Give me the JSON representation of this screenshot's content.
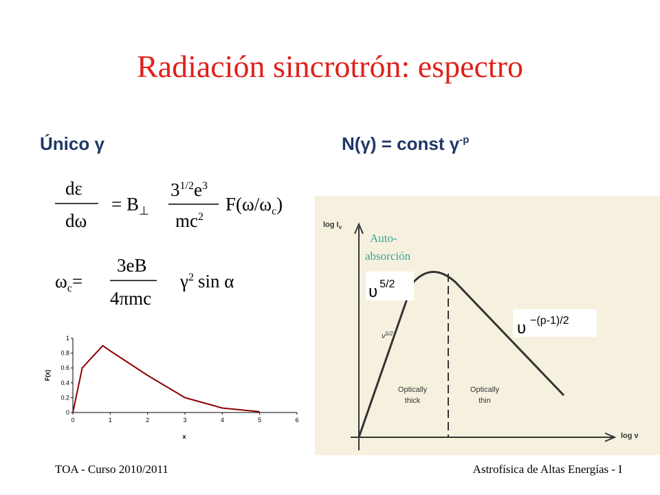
{
  "header": {
    "title": "Radiación sincrotrón: espectro"
  },
  "left": {
    "heading": "Único γ",
    "formula1": {
      "numerator": "dε",
      "denominator": "dω",
      "factor": "= B",
      "factor_sub": "⊥",
      "coef_base": "3",
      "coef_sup": "1/2",
      "coef_e": "e",
      "coef_e_sup": "3",
      "coef_den": "mc",
      "coef_den_sup": "2",
      "function": "F(ω/ω",
      "function_sub": "c",
      "function_end": ")"
    },
    "formula2": {
      "lhs": "ω",
      "lhs_sub": "c",
      "equals": "=",
      "numerator": "3eB",
      "denominator": "4πmc",
      "gamma": "γ",
      "gamma_sup": "2",
      "rest": "sin α"
    }
  },
  "chart_data": {
    "type": "line",
    "x_label": "x",
    "y_label": "F(x)",
    "x": [
      0,
      0.25,
      0.8,
      1,
      2,
      3,
      4,
      5
    ],
    "series": [
      {
        "color": "#8b0000",
        "values": [
          0,
          0.6,
          0.9,
          0.83,
          0.5,
          0.2,
          0.06,
          0.01
        ]
      }
    ],
    "xlim": [
      0,
      6
    ],
    "ylim": [
      0,
      1
    ],
    "xticks": [
      0,
      1,
      2,
      3,
      4,
      5,
      6
    ],
    "yticks": [
      0,
      0.2,
      0.4,
      0.6,
      0.8,
      1
    ]
  },
  "right": {
    "heading": "N(γ) = const γ",
    "heading_sup": "-p",
    "diagram": {
      "y_axis": "log I",
      "y_axis_sub": "ν",
      "x_axis": "log ν",
      "slope_label": "ν",
      "slope_sup": "5/2",
      "thick": [
        "Optically",
        "thick"
      ],
      "thin": [
        "Optically",
        "thin"
      ]
    },
    "annotations": {
      "auto": [
        "Auto-",
        "absorción"
      ],
      "rise": "υ",
      "rise_sup": "5/2",
      "fall": "υ",
      "fall_sup": "−(p-1)/2"
    }
  },
  "footer": {
    "left": "TOA - Curso 2010/2011",
    "right": "Astrofísica de Altas Energías - I"
  }
}
